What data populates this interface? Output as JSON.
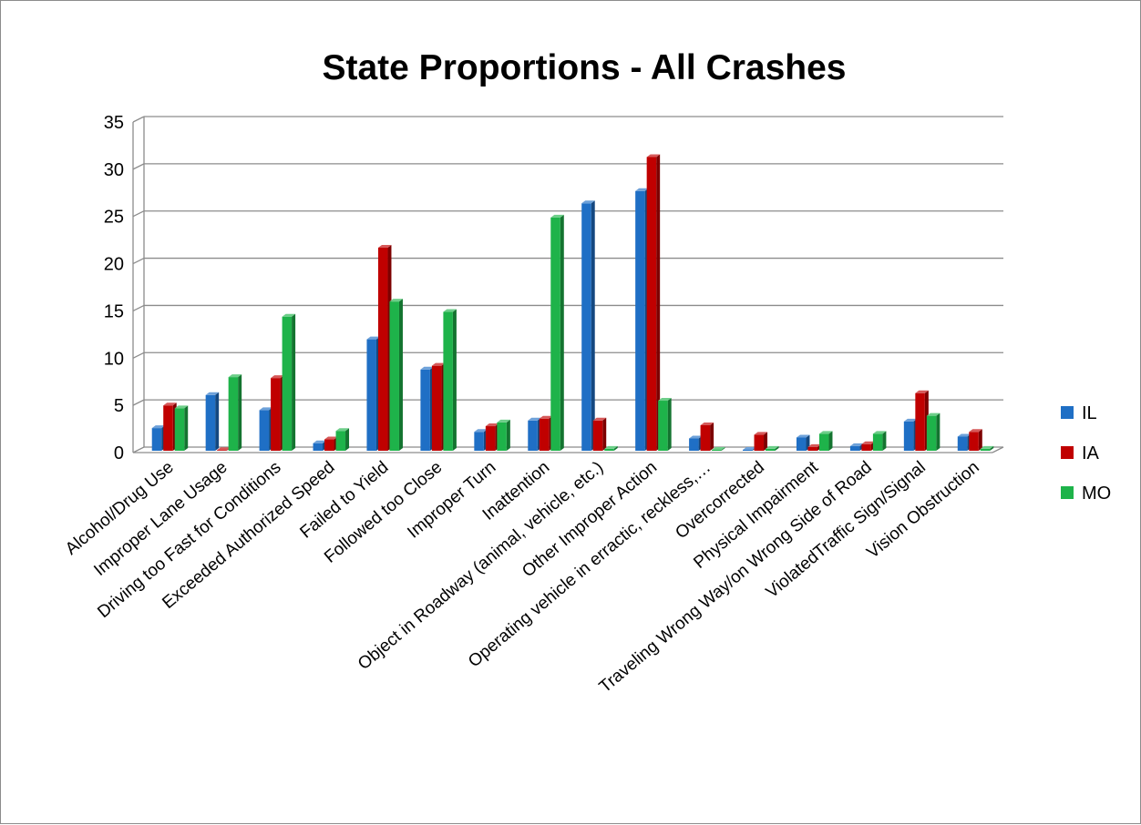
{
  "chart_data": {
    "type": "bar",
    "title": "State Proportions - All Crashes",
    "xlabel": "",
    "ylabel": "",
    "ylim": [
      0,
      35
    ],
    "yticks": [
      0,
      5,
      10,
      15,
      20,
      25,
      30,
      35
    ],
    "grid": true,
    "legend_position": "right",
    "categories": [
      "Alcohol/Drug Use",
      "Improper Lane Usage",
      "Driving too Fast for Conditions",
      "Exceeded Authorized Speed",
      "Failed to Yield",
      "Followed too Close",
      "Improper Turn",
      "Inattention",
      "Object in Roadway (animal, vehicle, etc.)",
      "Other Improper Action",
      "Operating vehicle in erractic, reckless,…",
      "Overcorrected",
      "Physical Impairment",
      "Traveling Wrong Way/on Wrong Side of Road",
      "ViolatedTraffic Sign/Signal",
      "Vision Obstruction"
    ],
    "series": [
      {
        "name": "IL",
        "color": "#1f6fc5",
        "values": [
          2.4,
          5.9,
          4.3,
          0.8,
          11.8,
          8.6,
          2.0,
          3.2,
          26.2,
          27.5,
          1.3,
          0.1,
          1.4,
          0.5,
          3.1,
          1.5
        ]
      },
      {
        "name": "IA",
        "color": "#c00000",
        "values": [
          4.8,
          0.0,
          7.7,
          1.2,
          21.5,
          9.0,
          2.6,
          3.4,
          3.2,
          31.1,
          2.7,
          1.7,
          0.4,
          0.7,
          6.1,
          2.0
        ]
      },
      {
        "name": "MO",
        "color": "#1eb34a",
        "values": [
          4.5,
          7.8,
          14.2,
          2.1,
          15.8,
          14.7,
          3.0,
          24.7,
          0.2,
          5.3,
          0.1,
          0.2,
          1.8,
          1.8,
          3.7,
          0.2
        ]
      }
    ]
  }
}
